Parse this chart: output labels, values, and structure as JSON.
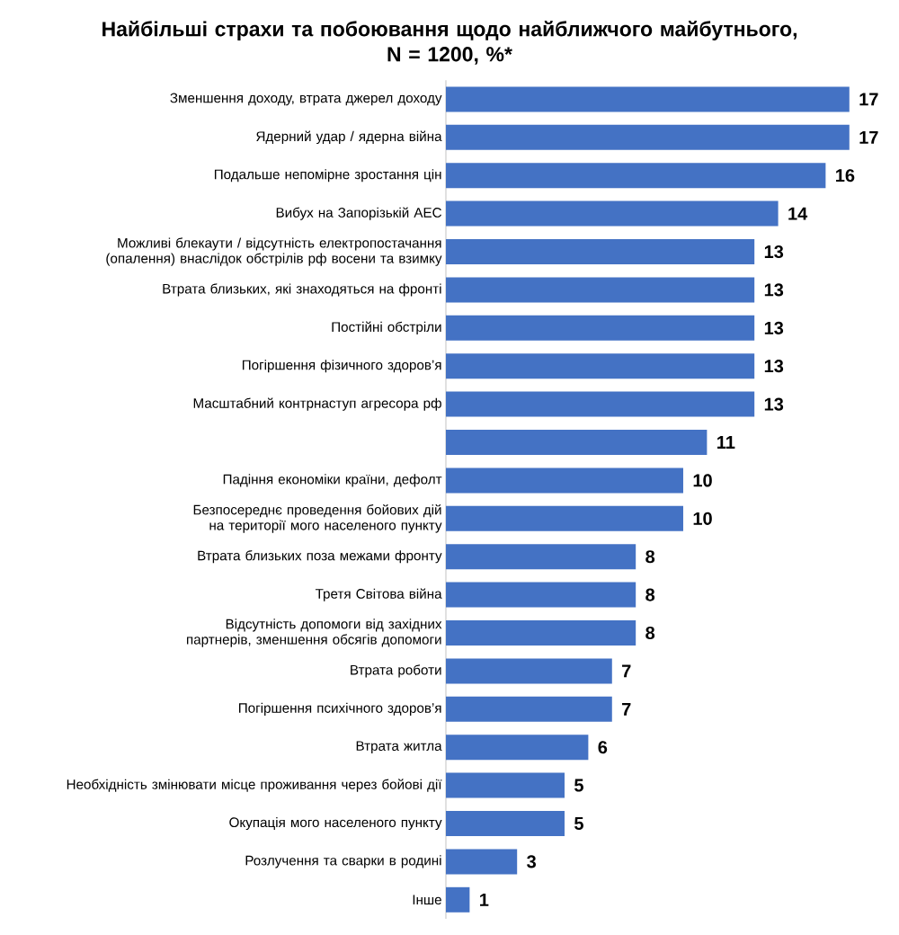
{
  "chart_data": {
    "type": "bar",
    "orientation": "horizontal",
    "title": "Найбільші страхи та побоювання щодо найближчого майбутнього,\nN = 1200, %*",
    "categories": [
      "Зменшення доходу, втрата джерел доходу",
      "Ядерний удар / ядерна війна",
      "Подальше непомірне зростання цін",
      "Вибух на Запорізькій АЕС",
      "Можливі блекаути / відсутність електропостачання (опалення) внаслідок обстрілів рф восени та взимку",
      "Втрата близьких, які знаходяться на фронті",
      "Постійні обстріли",
      "Погіршення фізичного здоров’я",
      "Масштабний контрнаступ агресора рф",
      null,
      "Падіння економіки країни, дефолт",
      "Безпосереднє проведення бойових дій на території мого населеного пункту",
      "Втрата близьких поза межами фронту",
      "Третя Світова війна",
      "Відсутність допомоги від західних партнерів, зменшення обсягів допомоги",
      "Втрата роботи",
      "Погіршення психічного здоров’я",
      "Втрата житла",
      "Необхідність змінювати місце проживання через бойові дії",
      "Окупація мого населеного пункту",
      "Розлучення та сварки в родині",
      "Інше"
    ],
    "values": [
      17,
      17,
      16,
      14,
      13,
      13,
      13,
      13,
      13,
      11,
      10,
      10,
      8,
      8,
      8,
      7,
      7,
      6,
      5,
      5,
      3,
      1
    ],
    "color": "#4472c4",
    "data_labels": true
  }
}
